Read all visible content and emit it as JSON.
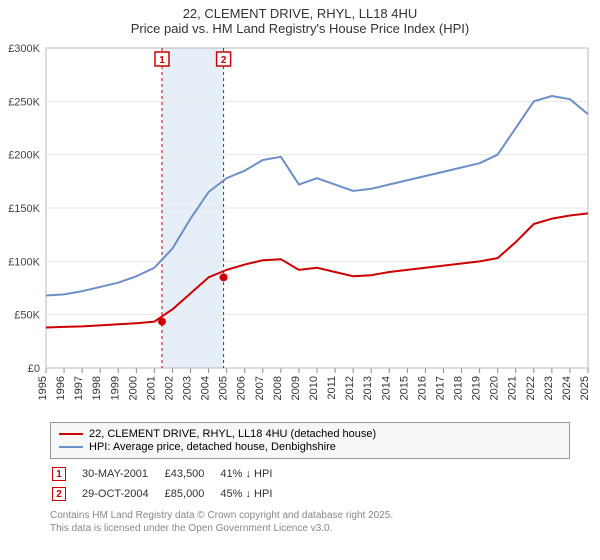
{
  "title": {
    "main": "22, CLEMENT DRIVE, RHYL, LL18 4HU",
    "sub": "Price paid vs. HM Land Registry's House Price Index (HPI)"
  },
  "chart": {
    "type": "line",
    "background_color": "#ffffff",
    "plot_bg": "#ffffff",
    "grid_color": "#e6e6e6",
    "x_years": [
      1995,
      1996,
      1997,
      1998,
      1999,
      2000,
      2001,
      2002,
      2003,
      2004,
      2005,
      2006,
      2007,
      2008,
      2009,
      2010,
      2011,
      2012,
      2013,
      2014,
      2015,
      2016,
      2017,
      2018,
      2019,
      2020,
      2021,
      2022,
      2023,
      2024,
      2025
    ],
    "ylim": [
      0,
      300000
    ],
    "ytick_step": 50000,
    "ytick_labels": [
      "£0",
      "£50K",
      "£100K",
      "£150K",
      "£200K",
      "£250K",
      "£300K"
    ],
    "label_fontsize": 11,
    "marker_band_color": "#e6eef7",
    "marker_line_color": "#cc0000",
    "marker_line_dash": "3,3",
    "series": [
      {
        "name": "22, CLEMENT DRIVE, RHYL, LL18 4HU (detached house)",
        "color": "#cc0000",
        "width": 2,
        "data": [
          38000,
          38500,
          39000,
          40000,
          41000,
          42000,
          43500,
          55000,
          70000,
          85000,
          92000,
          97000,
          101000,
          102000,
          92000,
          94000,
          90000,
          86000,
          87000,
          90000,
          92000,
          94000,
          96000,
          98000,
          100000,
          103000,
          118000,
          135000,
          140000,
          143000,
          145000
        ]
      },
      {
        "name": "HPI: Average price, detached house, Denbighshire",
        "color": "#6b8fc9",
        "width": 2,
        "data": [
          68000,
          69000,
          72000,
          76000,
          80000,
          86000,
          94000,
          112000,
          140000,
          165000,
          178000,
          185000,
          195000,
          198000,
          172000,
          178000,
          172000,
          166000,
          168000,
          172000,
          176000,
          180000,
          184000,
          188000,
          192000,
          200000,
          225000,
          250000,
          255000,
          252000,
          238000
        ]
      }
    ],
    "markers": [
      {
        "label": "1",
        "year": 2001.42,
        "date": "30-MAY-2001",
        "price": "£43,500",
        "delta": "41% ↓ HPI",
        "point_y": 43500
      },
      {
        "label": "2",
        "year": 2004.83,
        "date": "29-OCT-2004",
        "price": "£85,000",
        "delta": "45% ↓ HPI",
        "point_y": 85000
      }
    ]
  },
  "attribution": {
    "line1": "Contains HM Land Registry data © Crown copyright and database right 2025.",
    "line2": "This data is licensed under the Open Government Licence v3.0."
  }
}
